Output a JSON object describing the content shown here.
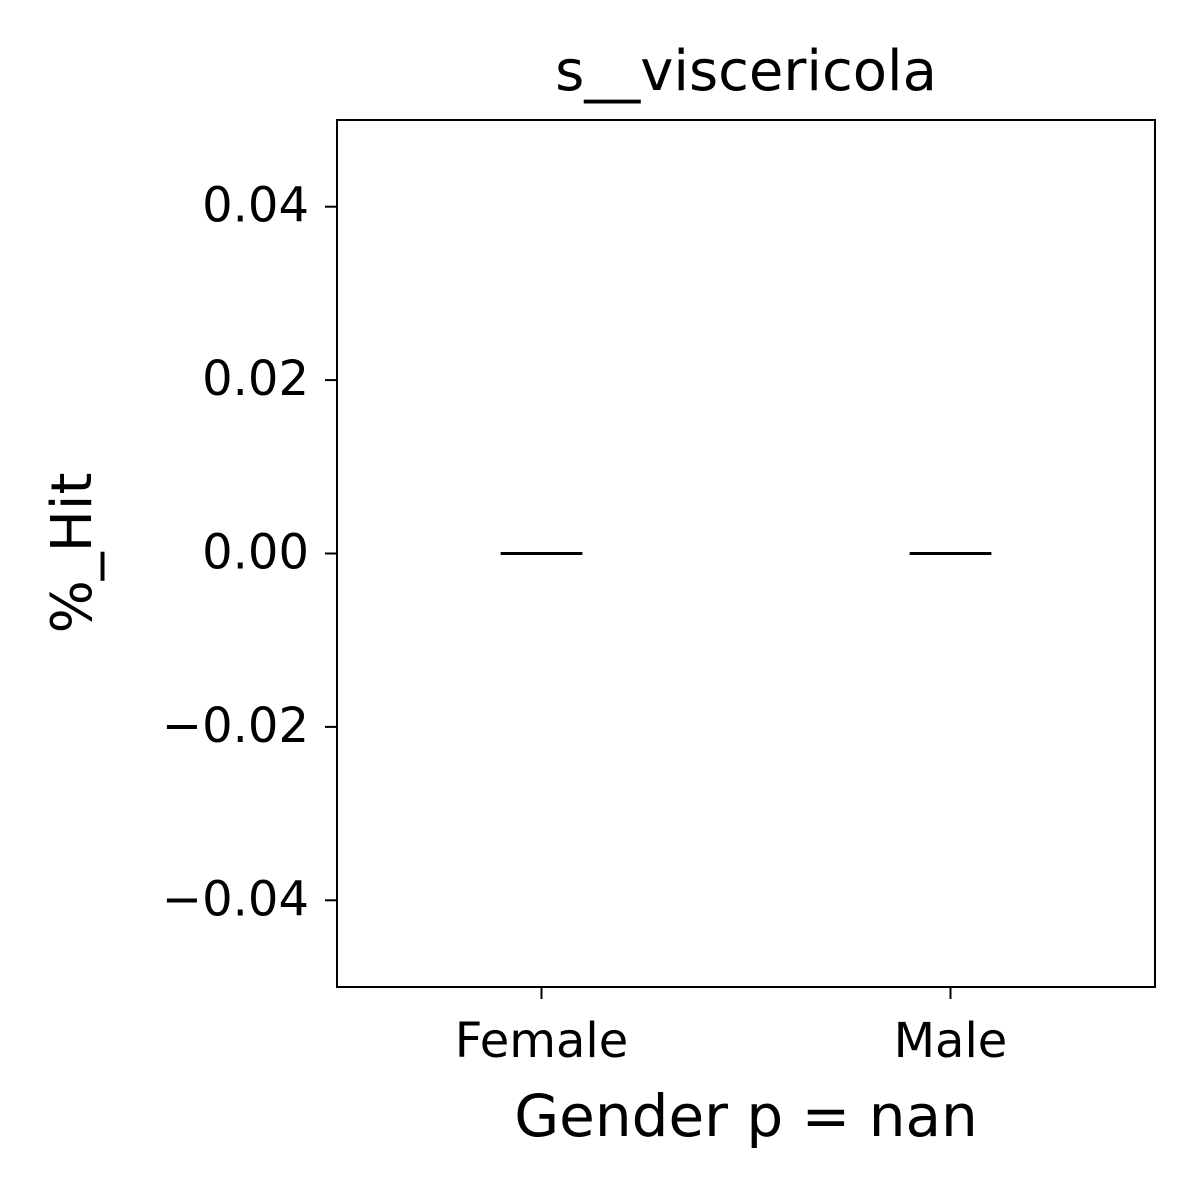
{
  "chart_data": {
    "type": "box",
    "title": "s__viscericola",
    "x_label": "Gender p = nan",
    "y_label": "%_Hit",
    "categories": [
      "Female",
      "Male"
    ],
    "values": [
      0,
      0
    ],
    "color": "#000000",
    "ylim": [
      -0.05,
      0.05
    ],
    "yticks": [
      {
        "value": -0.04,
        "label": "−0.04"
      },
      {
        "value": -0.02,
        "label": "−0.02"
      },
      {
        "value": 0,
        "label": "0.00"
      },
      0.02,
      0.04
    ]
  }
}
